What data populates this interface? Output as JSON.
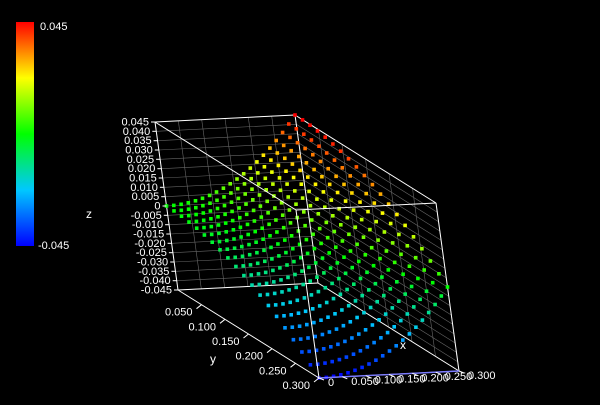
{
  "chart_data": {
    "type": "scatter",
    "subtype": "3d-point-surface",
    "title": "",
    "xlabel": "x",
    "ylabel": "y",
    "zlabel": "z",
    "xlim": [
      0,
      0.3
    ],
    "ylim": [
      0,
      0.3
    ],
    "zlim": [
      -0.045,
      0.045
    ],
    "x_ticks": [
      "0",
      "0.050",
      "0.100",
      "0.150",
      "0.200",
      "0.250",
      "0.300"
    ],
    "y_ticks": [
      "0.050",
      "0.100",
      "0.150",
      "0.200",
      "0.250",
      "0.300"
    ],
    "z_ticks": [
      "-0.045",
      "-0.040",
      "-0.035",
      "-0.030",
      "-0.025",
      "-0.020",
      "-0.015",
      "-0.010",
      "-0.005",
      "0",
      "0.005",
      "0.010",
      "0.015",
      "0.020",
      "0.025",
      "0.030",
      "0.035",
      "0.040",
      "0.045"
    ],
    "surface": "z = 0.5 * (x^2 - y^2)",
    "grid_points_per_axis": 20,
    "grid": true,
    "colormap": [
      "#0000ff",
      "#00c8ff",
      "#00ff00",
      "#ffff00",
      "#ff0000"
    ],
    "colorbar": {
      "max_label": "0.045",
      "min_label": "-0.045",
      "placement": "top-left"
    },
    "box_color": "#ffffff",
    "background": "#000000"
  }
}
